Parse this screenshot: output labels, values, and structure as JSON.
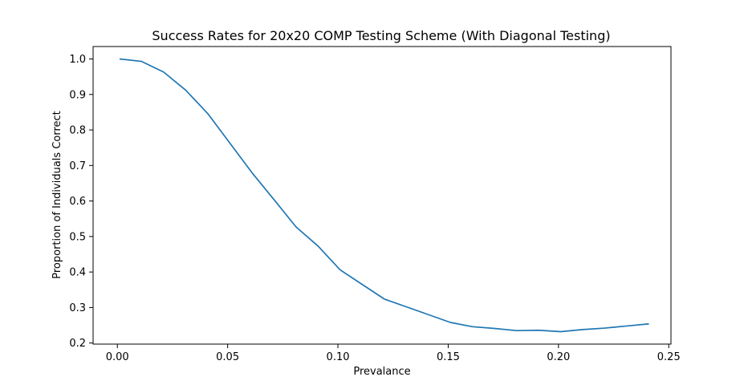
{
  "chart_data": {
    "type": "line",
    "title": "Success Rates for 20x20 COMP Testing Scheme (With Diagonal Testing)",
    "xlabel": "Prevalance",
    "ylabel": "Proportion of Individuals Correct",
    "xlim": [
      -0.011,
      0.251
    ],
    "ylim": [
      0.197,
      1.035
    ],
    "xticks": [
      0.0,
      0.05,
      0.1,
      0.15,
      0.2,
      0.25
    ],
    "xtick_labels": [
      "0.00",
      "0.05",
      "0.10",
      "0.15",
      "0.20",
      "0.25"
    ],
    "yticks": [
      0.2,
      0.3,
      0.4,
      0.5,
      0.6,
      0.7,
      0.8,
      0.9,
      1.0
    ],
    "ytick_labels": [
      "0.2",
      "0.3",
      "0.4",
      "0.5",
      "0.6",
      "0.7",
      "0.8",
      "0.9",
      "1.0"
    ],
    "grid": false,
    "line_color": "#1f77b4",
    "x": [
      0.001,
      0.011,
      0.021,
      0.031,
      0.041,
      0.051,
      0.061,
      0.071,
      0.081,
      0.091,
      0.101,
      0.111,
      0.121,
      0.131,
      0.141,
      0.151,
      0.161,
      0.171,
      0.181,
      0.191,
      0.201,
      0.211,
      0.221,
      0.231,
      0.241
    ],
    "y": [
      1.0,
      0.993,
      0.963,
      0.912,
      0.846,
      0.763,
      0.68,
      0.604,
      0.527,
      0.473,
      0.406,
      0.365,
      0.324,
      0.302,
      0.28,
      0.258,
      0.246,
      0.241,
      0.235,
      0.236,
      0.232,
      0.238,
      0.242,
      0.248,
      0.254
    ]
  }
}
